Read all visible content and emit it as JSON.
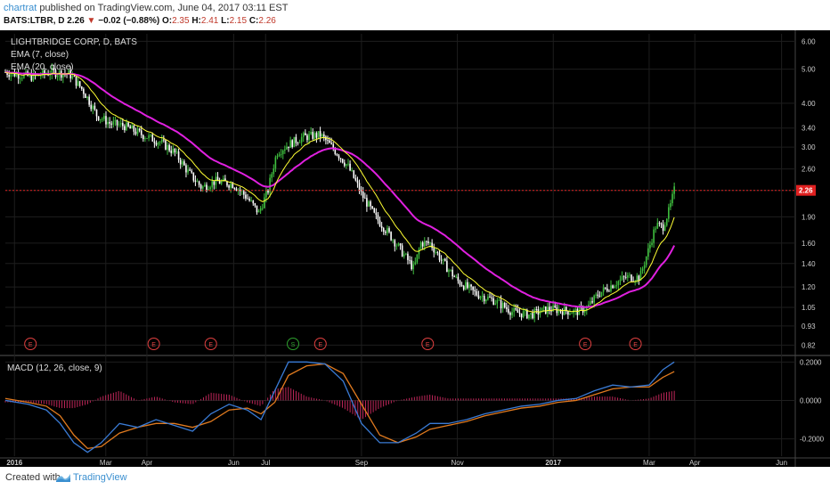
{
  "header": {
    "author": "chartrat",
    "published_text": "published on TradingView.com, June 04, 2017 03:11 EST",
    "symbol": "BATS:LTBR, D",
    "last": "2.26",
    "change": "−0.02 (−0.88%)",
    "o_label": "O:",
    "o_value": "2.35",
    "h_label": "H:",
    "h_value": "2.41",
    "l_label": "L:",
    "l_value": "2.15",
    "c_label": "C:",
    "c_value": "2.26"
  },
  "legend": {
    "title": "LIGHTBRIDGE CORP, D, BATS",
    "ema7": "EMA (7, close)",
    "ema20": "EMA (20, close)",
    "macd": "MACD (12, 26, close, 9)"
  },
  "footer": {
    "created_with": "Created with",
    "brand": "TradingView"
  },
  "colors": {
    "background": "#000000",
    "grid": "#1e1e1e",
    "up": "#3fbf3f",
    "down": "#ffffff",
    "ema7": "#ffff33",
    "ema20": "#e020e0",
    "macd": "#3a7bd5",
    "signal": "#e07a1f",
    "hist": "#c0265a",
    "price_line": "#e02020",
    "event": "#e04040",
    "split": "#2ea02e"
  },
  "chart_data": [
    {
      "type": "candlestick",
      "title": "LIGHTBRIDGE CORP, D, BATS",
      "y_scale": "log",
      "ylim": [
        0.78,
        6.3
      ],
      "y_ticks": [
        "6.00",
        "5.00",
        "4.00",
        "3.40",
        "3.00",
        "2.60",
        "2.26",
        "1.90",
        "1.60",
        "1.40",
        "1.20",
        "1.05",
        "0.93",
        "0.82"
      ],
      "last_price": 2.26,
      "x_ticks": [
        "2016",
        "Mar",
        "Apr",
        "Jun",
        "Jul",
        "Sep",
        "Nov",
        "2017",
        "Mar",
        "Apr",
        "Jun"
      ],
      "x_tick_pos": [
        0.2,
        2.2,
        3.1,
        5.0,
        5.7,
        7.8,
        9.9,
        12.0,
        14.1,
        15.1,
        17.0
      ],
      "x_start": 0,
      "x_end": 17.3,
      "events": [
        {
          "label": "E",
          "x": 0.55
        },
        {
          "label": "E",
          "x": 3.25
        },
        {
          "label": "E",
          "x": 4.5
        },
        {
          "label": "S",
          "x": 6.3
        },
        {
          "label": "E",
          "x": 6.9
        },
        {
          "label": "E",
          "x": 9.25
        },
        {
          "label": "E",
          "x": 12.7
        },
        {
          "label": "E",
          "x": 13.8
        }
      ],
      "close_key_points": [
        [
          0.0,
          4.9
        ],
        [
          0.6,
          4.75
        ],
        [
          1.0,
          4.9
        ],
        [
          1.4,
          4.85
        ],
        [
          1.7,
          4.35
        ],
        [
          2.0,
          3.7
        ],
        [
          2.3,
          3.5
        ],
        [
          2.6,
          3.45
        ],
        [
          3.0,
          3.25
        ],
        [
          3.4,
          3.1
        ],
        [
          3.7,
          2.9
        ],
        [
          4.0,
          2.55
        ],
        [
          4.3,
          2.3
        ],
        [
          4.6,
          2.4
        ],
        [
          5.0,
          2.35
        ],
        [
          5.3,
          2.15
        ],
        [
          5.55,
          1.95
        ],
        [
          5.75,
          2.25
        ],
        [
          5.95,
          2.9
        ],
        [
          6.2,
          3.05
        ],
        [
          6.5,
          3.2
        ],
        [
          6.9,
          3.25
        ],
        [
          7.2,
          2.95
        ],
        [
          7.5,
          2.65
        ],
        [
          7.8,
          2.2
        ],
        [
          8.1,
          1.9
        ],
        [
          8.4,
          1.7
        ],
        [
          8.7,
          1.5
        ],
        [
          8.95,
          1.35
        ],
        [
          9.1,
          1.6
        ],
        [
          9.3,
          1.6
        ],
        [
          9.6,
          1.4
        ],
        [
          9.9,
          1.25
        ],
        [
          10.3,
          1.15
        ],
        [
          10.7,
          1.1
        ],
        [
          11.1,
          1.02
        ],
        [
          11.5,
          1.0
        ],
        [
          11.9,
          1.04
        ],
        [
          12.2,
          1.03
        ],
        [
          12.5,
          1.02
        ],
        [
          12.75,
          1.05
        ],
        [
          13.0,
          1.15
        ],
        [
          13.3,
          1.22
        ],
        [
          13.6,
          1.28
        ],
        [
          13.9,
          1.28
        ],
        [
          14.1,
          1.55
        ],
        [
          14.25,
          1.8
        ],
        [
          14.4,
          1.78
        ],
        [
          14.55,
          2.0
        ],
        [
          14.65,
          2.26
        ]
      ]
    },
    {
      "type": "line",
      "title": "MACD (12, 26, close, 9)",
      "ylim": [
        -0.29,
        0.22
      ],
      "y_ticks": [
        "0.2000",
        "0.0000",
        "-0.2000"
      ],
      "series": [
        {
          "name": "MACD",
          "points": [
            [
              0.0,
              0.0
            ],
            [
              0.5,
              -0.02
            ],
            [
              0.9,
              -0.05
            ],
            [
              1.2,
              -0.12
            ],
            [
              1.5,
              -0.22
            ],
            [
              1.8,
              -0.27
            ],
            [
              2.1,
              -0.22
            ],
            [
              2.5,
              -0.12
            ],
            [
              2.9,
              -0.14
            ],
            [
              3.3,
              -0.1
            ],
            [
              3.7,
              -0.13
            ],
            [
              4.1,
              -0.16
            ],
            [
              4.5,
              -0.07
            ],
            [
              4.9,
              -0.02
            ],
            [
              5.3,
              -0.05
            ],
            [
              5.6,
              -0.1
            ],
            [
              5.9,
              0.05
            ],
            [
              6.2,
              0.2
            ],
            [
              6.6,
              0.2
            ],
            [
              7.0,
              0.19
            ],
            [
              7.4,
              0.1
            ],
            [
              7.8,
              -0.12
            ],
            [
              8.2,
              -0.22
            ],
            [
              8.6,
              -0.22
            ],
            [
              9.0,
              -0.17
            ],
            [
              9.3,
              -0.12
            ],
            [
              9.7,
              -0.12
            ],
            [
              10.1,
              -0.1
            ],
            [
              10.5,
              -0.07
            ],
            [
              10.9,
              -0.05
            ],
            [
              11.3,
              -0.03
            ],
            [
              11.7,
              -0.02
            ],
            [
              12.1,
              0.0
            ],
            [
              12.5,
              0.01
            ],
            [
              12.9,
              0.05
            ],
            [
              13.3,
              0.08
            ],
            [
              13.7,
              0.07
            ],
            [
              14.1,
              0.08
            ],
            [
              14.4,
              0.16
            ],
            [
              14.65,
              0.2
            ]
          ]
        },
        {
          "name": "Signal",
          "points": [
            [
              0.0,
              0.01
            ],
            [
              0.5,
              -0.01
            ],
            [
              0.9,
              -0.03
            ],
            [
              1.2,
              -0.08
            ],
            [
              1.5,
              -0.18
            ],
            [
              1.8,
              -0.25
            ],
            [
              2.1,
              -0.24
            ],
            [
              2.5,
              -0.17
            ],
            [
              2.9,
              -0.14
            ],
            [
              3.3,
              -0.12
            ],
            [
              3.7,
              -0.12
            ],
            [
              4.1,
              -0.14
            ],
            [
              4.5,
              -0.11
            ],
            [
              4.9,
              -0.05
            ],
            [
              5.3,
              -0.04
            ],
            [
              5.6,
              -0.07
            ],
            [
              5.9,
              -0.01
            ],
            [
              6.2,
              0.13
            ],
            [
              6.6,
              0.18
            ],
            [
              7.0,
              0.19
            ],
            [
              7.4,
              0.14
            ],
            [
              7.8,
              -0.02
            ],
            [
              8.2,
              -0.18
            ],
            [
              8.6,
              -0.22
            ],
            [
              9.0,
              -0.19
            ],
            [
              9.3,
              -0.15
            ],
            [
              9.7,
              -0.13
            ],
            [
              10.1,
              -0.11
            ],
            [
              10.5,
              -0.08
            ],
            [
              10.9,
              -0.06
            ],
            [
              11.3,
              -0.04
            ],
            [
              11.7,
              -0.03
            ],
            [
              12.1,
              -0.01
            ],
            [
              12.5,
              0.0
            ],
            [
              12.9,
              0.03
            ],
            [
              13.3,
              0.06
            ],
            [
              13.7,
              0.07
            ],
            [
              14.1,
              0.07
            ],
            [
              14.4,
              0.12
            ],
            [
              14.65,
              0.15
            ]
          ]
        }
      ]
    }
  ]
}
